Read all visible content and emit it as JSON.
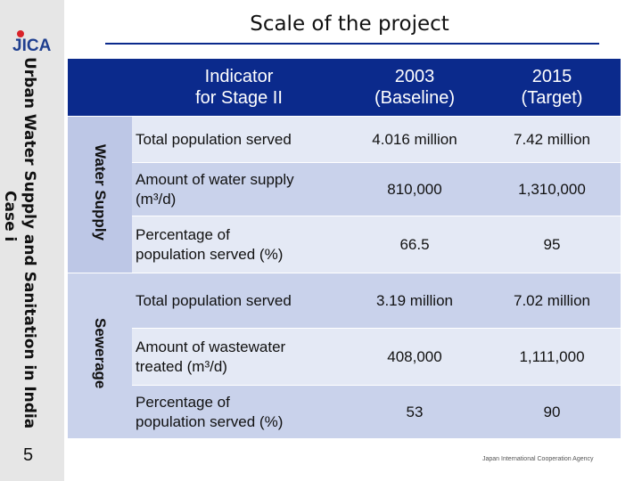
{
  "title": "Scale of the project",
  "logo_text": "JICA",
  "case_label_line1": "Urban Water Supply and Sanitation in India",
  "case_label_line2": "Case i",
  "page_number": "5",
  "footer": "Japan International Cooperation Agency",
  "colors": {
    "header_blue": "#0b2a8c",
    "row_dark": "#c9d2eb",
    "row_light": "#e4e9f5",
    "side_band": "#e6e6e6"
  },
  "table": {
    "headers": {
      "indicator_line1": "Indicator",
      "indicator_line2": "for Stage II",
      "baseline_line1": "2003",
      "baseline_line2": "(Baseline)",
      "target_line1": "2015",
      "target_line2": "(Target)"
    },
    "groups": [
      {
        "name": "Water Supply",
        "rows": [
          {
            "indicator": "Total population served",
            "baseline": "4.016 million",
            "target": "7.42 million"
          },
          {
            "indicator_line1": "Amount of water supply",
            "indicator_line2": "(m³/d)",
            "baseline": "810,000",
            "target": "1,310,000"
          },
          {
            "indicator_line1": "Percentage of",
            "indicator_line2": "population served (%)",
            "baseline": "66.5",
            "target": "95"
          }
        ]
      },
      {
        "name": "Sewerage",
        "rows": [
          {
            "indicator": "Total population served",
            "baseline": "3.19 million",
            "target": "7.02 million"
          },
          {
            "indicator_line1": "Amount of wastewater",
            "indicator_line2": "treated (m³/d)",
            "baseline": "408,000",
            "target": "1,111,000"
          },
          {
            "indicator_line1": "Percentage of",
            "indicator_line2": "population served (%)",
            "baseline": "53",
            "target": "90"
          }
        ]
      }
    ]
  }
}
